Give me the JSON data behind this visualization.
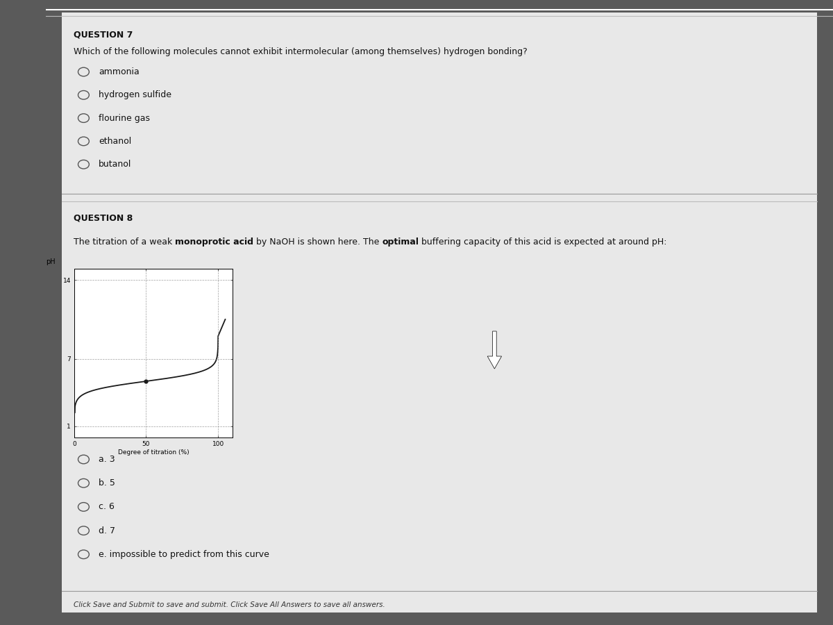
{
  "bg_outer": "#5a5a5a",
  "bg_sidebar": "#3a3a3a",
  "bg_content": "#d8d8d8",
  "bg_panel": "#e0e0e0",
  "bg_white_panel": "#e8e8e8",
  "separator_color": "#aaaaaa",
  "q7_title": "QUESTION 7",
  "q7_question": "Which of the following molecules cannot exhibit intermolecular (among themselves) hydrogen bonding?",
  "q7_options": [
    "ammonia",
    "hydrogen sulfide",
    "flourine gas",
    "ethanol",
    "butanol"
  ],
  "q8_title": "QUESTION 8",
  "q8_parts": [
    [
      "The titration of a weak ",
      false
    ],
    [
      "monoprotic acid",
      true
    ],
    [
      " by NaOH is shown here. The ",
      false
    ],
    [
      "optimal",
      true
    ],
    [
      " buffering capacity of this acid is expected at around pH:",
      false
    ]
  ],
  "q8_options": [
    "a. 3",
    "b. 5",
    "c. 6",
    "d. 7",
    "e. impossible to predict from this curve"
  ],
  "graph_xlabel": "Degree of titration (%)",
  "graph_ylabel": "pH",
  "graph_ytick_labels": [
    "1",
    "7",
    "14"
  ],
  "graph_ytick_vals": [
    1,
    7,
    14
  ],
  "graph_xtick_labels": [
    "0",
    "50",
    "100"
  ],
  "graph_xtick_vals": [
    0,
    50,
    100
  ],
  "graph_xlim": [
    0,
    110
  ],
  "graph_ylim": [
    0,
    15
  ],
  "footer_text": "Click Save and Submit to save and submit. Click Save All Answers to save all answers.",
  "text_color": "#111111",
  "light_text": "#333333",
  "circle_color": "#555555",
  "title_fontsize": 9,
  "body_fontsize": 9,
  "option_fontsize": 9
}
